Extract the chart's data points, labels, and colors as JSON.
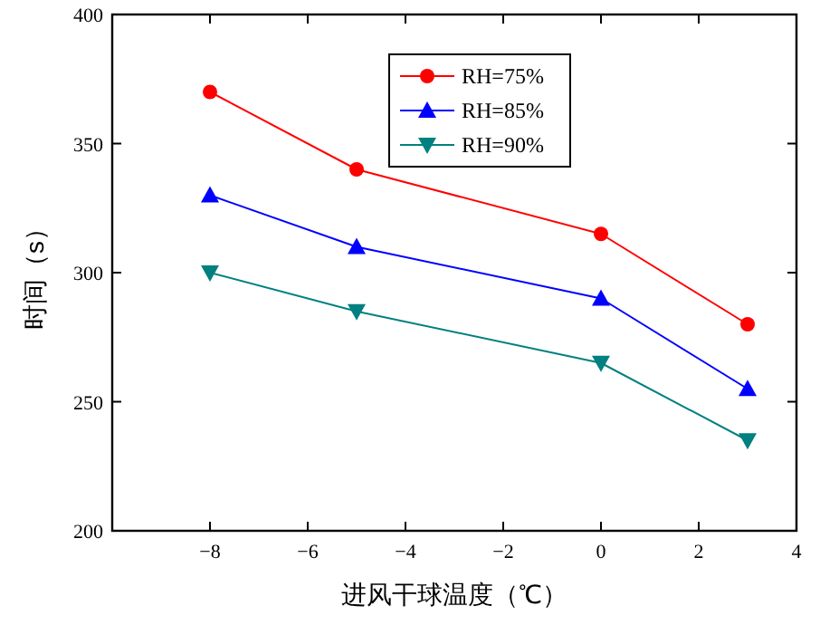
{
  "chart_data": {
    "type": "line",
    "xlabel": "进风干球温度（℃）",
    "ylabel": "时间（s）",
    "x": [
      -8,
      -5,
      0,
      3
    ],
    "series": [
      {
        "name": "RH=75%",
        "color": "#ff0000",
        "marker": "circle",
        "values": [
          370,
          340,
          315,
          280
        ]
      },
      {
        "name": "RH=85%",
        "color": "#0000ff",
        "marker": "triangle",
        "values": [
          330,
          310,
          290,
          255
        ]
      },
      {
        "name": "RH=90%",
        "color": "#008080",
        "marker": "triangle-down",
        "values": [
          300,
          285,
          265,
          235
        ]
      }
    ],
    "xlim": [
      -10,
      4
    ],
    "xticks": [
      -8,
      -6,
      -4,
      -2,
      0,
      2,
      4
    ],
    "ylim": [
      200,
      400
    ],
    "yticks": [
      200,
      250,
      300,
      350,
      400
    ],
    "legend": "top",
    "grid": false,
    "line_style": "solid"
  }
}
